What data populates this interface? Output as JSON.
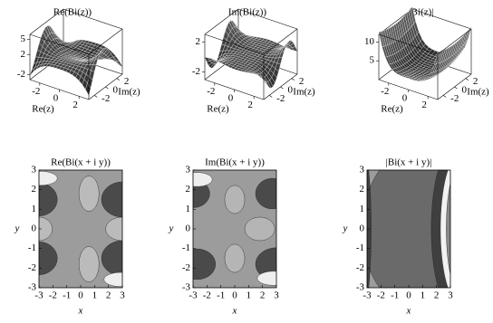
{
  "chart_data": [
    {
      "type": "surface",
      "title": "Re(Bi(z))",
      "x_label": "Re(z)",
      "y_label": "Im(z)",
      "xlim": [
        -3,
        3
      ],
      "ylim": [
        -3,
        3
      ],
      "xticks": [
        -2,
        0,
        2
      ],
      "yticks": [
        -2,
        0,
        2
      ],
      "zlim": [
        -3,
        6
      ],
      "zticks": [
        -2,
        2,
        5
      ]
    },
    {
      "type": "surface",
      "title": "Im(Bi(z))",
      "x_label": "Re(z)",
      "y_label": "Im(z)",
      "xlim": [
        -3,
        3
      ],
      "ylim": [
        -3,
        3
      ],
      "xticks": [
        -2,
        0,
        2
      ],
      "yticks": [
        -2,
        0,
        2
      ],
      "zlim": [
        -3,
        3
      ],
      "zticks": [
        -2,
        2
      ]
    },
    {
      "type": "surface",
      "title": "|Bi(z)|",
      "x_label": "Re(z)",
      "y_label": "Im(z)",
      "xlim": [
        -3,
        3
      ],
      "ylim": [
        -3,
        3
      ],
      "xticks": [
        -2,
        0,
        2
      ],
      "yticks": [
        -2,
        0,
        2
      ],
      "zlim": [
        0,
        12
      ],
      "zticks": [
        5,
        10
      ]
    },
    {
      "type": "contour",
      "title": "Re(Bi(x + i y))",
      "x_label": "x",
      "y_label": "y",
      "xlim": [
        -3,
        3
      ],
      "ylim": [
        -3,
        3
      ],
      "xticks": [
        -3,
        -2,
        -1,
        0,
        1,
        2,
        3
      ],
      "yticks": [
        -3,
        -2,
        -1,
        0,
        1,
        2,
        3
      ]
    },
    {
      "type": "contour",
      "title": "Im(Bi(x + i y))",
      "x_label": "x",
      "y_label": "y",
      "xlim": [
        -3,
        3
      ],
      "ylim": [
        -3,
        3
      ],
      "xticks": [
        -3,
        -2,
        -1,
        0,
        1,
        2,
        3
      ],
      "yticks": [
        -3,
        -2,
        -1,
        0,
        1,
        2,
        3
      ]
    },
    {
      "type": "contour",
      "title": "|Bi(x + i y)|",
      "x_label": "x",
      "y_label": "y",
      "xlim": [
        -3,
        3
      ],
      "ylim": [
        -3,
        3
      ],
      "xticks": [
        -3,
        -2,
        -1,
        0,
        1,
        2,
        3
      ],
      "yticks": [
        -3,
        -2,
        -1,
        0,
        1,
        2,
        3
      ]
    }
  ]
}
